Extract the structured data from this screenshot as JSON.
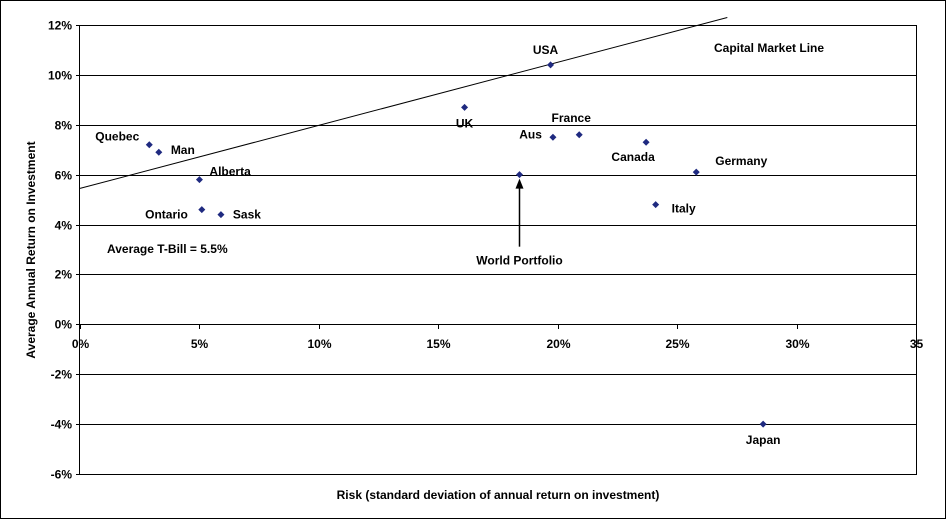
{
  "chart_data": {
    "type": "scatter",
    "title": "",
    "xlabel": "Risk (standard deviation of annual return on investment)",
    "ylabel": "Average Annual Return on Investment",
    "xlim": [
      0,
      35
    ],
    "ylim": [
      -6,
      12
    ],
    "x_tick_labels": [
      "0%",
      "5%",
      "10%",
      "15%",
      "20%",
      "25%",
      "30%",
      "35"
    ],
    "y_tick_labels": [
      "-6%",
      "-4%",
      "-2%",
      "0%",
      "2%",
      "4%",
      "6%",
      "8%",
      "10%",
      "12%"
    ],
    "grid": "horizontal",
    "points": [
      {
        "label": "Quebec",
        "x": 2.9,
        "y": 7.2
      },
      {
        "label": "Man",
        "x": 3.3,
        "y": 6.9
      },
      {
        "label": "Alberta",
        "x": 5.0,
        "y": 5.8
      },
      {
        "label": "Ontario",
        "x": 5.1,
        "y": 4.6
      },
      {
        "label": "Sask",
        "x": 5.9,
        "y": 4.4
      },
      {
        "label": "UK",
        "x": 16.1,
        "y": 8.7
      },
      {
        "label": "USA",
        "x": 19.7,
        "y": 10.4
      },
      {
        "label": "Aus",
        "x": 19.8,
        "y": 7.5
      },
      {
        "label": "France",
        "x": 20.9,
        "y": 7.6
      },
      {
        "label": "World Portfolio",
        "x": 18.4,
        "y": 6.0
      },
      {
        "label": "Canada",
        "x": 23.7,
        "y": 7.3
      },
      {
        "label": "Italy",
        "x": 24.1,
        "y": 4.8
      },
      {
        "label": "Germany",
        "x": 25.8,
        "y": 6.1
      },
      {
        "label": "Japan",
        "x": 28.6,
        "y": -4.0
      }
    ],
    "capital_market_line": {
      "label": "Capital Market Line",
      "start": [
        0,
        5.45
      ],
      "end": [
        27.1,
        12.3
      ]
    },
    "annotation": "Average T-Bill = 5.5%",
    "marker_color": "#1f2a80"
  }
}
